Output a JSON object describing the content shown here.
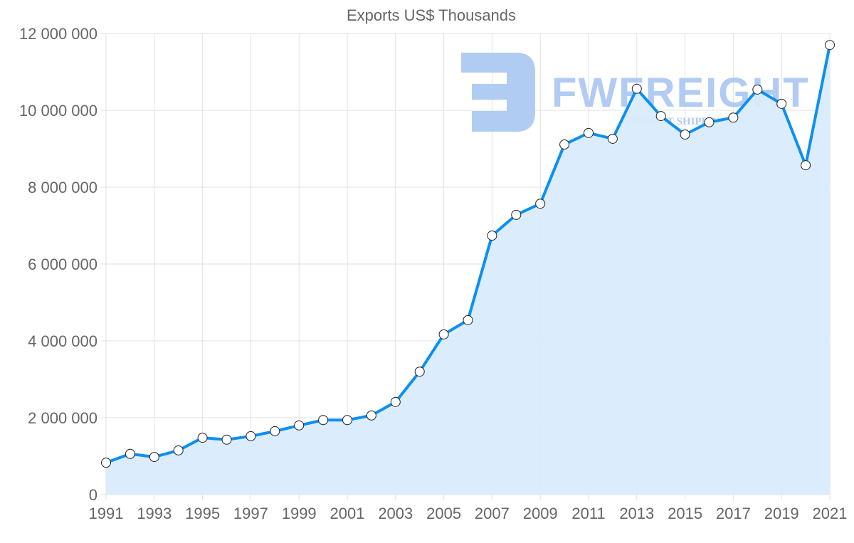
{
  "chart_data": {
    "type": "line",
    "title": "Exports US$ Thousands",
    "xlabel": "",
    "ylabel": "",
    "x": [
      1991,
      1992,
      1993,
      1994,
      1995,
      1996,
      1997,
      1998,
      1999,
      2000,
      2001,
      2002,
      2003,
      2004,
      2005,
      2006,
      2007,
      2008,
      2009,
      2010,
      2011,
      2012,
      2013,
      2014,
      2015,
      2016,
      2017,
      2018,
      2019,
      2020,
      2021
    ],
    "series": [
      {
        "name": "Exports US$ Thousands",
        "values": [
          830000,
          1060000,
          980000,
          1150000,
          1480000,
          1430000,
          1520000,
          1650000,
          1800000,
          1940000,
          1940000,
          2060000,
          2410000,
          3200000,
          4170000,
          4540000,
          6740000,
          7280000,
          7570000,
          9110000,
          9410000,
          9260000,
          10560000,
          9850000,
          9370000,
          9690000,
          9810000,
          10540000,
          10170000,
          8570000,
          11700000
        ],
        "color": "#0d8ff2",
        "fill": "#d9ebfc"
      }
    ],
    "ylim": [
      0,
      12000000
    ],
    "xlim": [
      1991,
      2021
    ],
    "yticks": [
      0,
      2000000,
      4000000,
      6000000,
      8000000,
      10000000,
      12000000
    ],
    "ytick_labels": [
      "0",
      "2 000 000",
      "4 000 000",
      "6 000 000",
      "8 000 000",
      "10 000 000",
      "12 000 000"
    ],
    "xtick_labels": [
      "1991",
      "1993",
      "1995",
      "1997",
      "1999",
      "2001",
      "2003",
      "2005",
      "2007",
      "2009",
      "2011",
      "2013",
      "2015",
      "2017",
      "2019",
      "2021"
    ],
    "grid": true,
    "legend": "none"
  },
  "watermark": {
    "brand": "FWFREIGHT",
    "tagline": "FREIGHT SHIPPING",
    "color": "#a9c6f2"
  }
}
